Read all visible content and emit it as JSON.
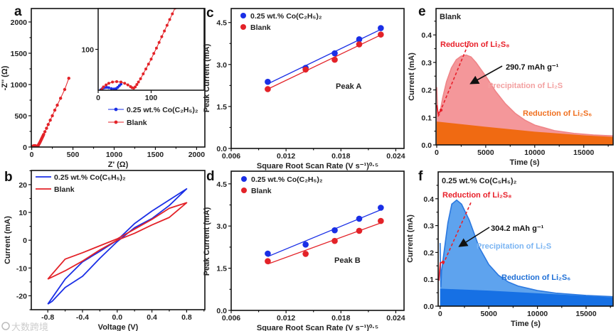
{
  "watermark": "大数跨境",
  "chart_data": [
    {
      "panel": "a",
      "type": "scatter",
      "xlabel": "Z' (Ω)",
      "ylabel": "-Z'' (Ω)",
      "xlim": [
        -5,
        2100
      ],
      "ylim": [
        0,
        2215
      ],
      "xticks": [
        0,
        500,
        1000,
        1500,
        2000
      ],
      "xtick_labels": [
        "0",
        "500",
        "1000",
        "1500",
        "2000"
      ],
      "yticks": [
        0,
        500,
        1000,
        1500,
        2000
      ],
      "ytick_labels": [
        "0",
        "500",
        "1000",
        "1500",
        "2000"
      ],
      "series": [
        {
          "name": "0.25 wt.% Co(C₂H₅)₂",
          "color": "#1a2fe6",
          "points": [
            [
              5,
              1
            ],
            [
              8,
              4
            ],
            [
              12,
              6
            ],
            [
              16,
              7
            ],
            [
              20,
              6
            ],
            [
              25,
              4
            ],
            [
              30,
              3
            ],
            [
              34,
              4
            ],
            [
              37,
              7
            ],
            [
              40,
              11
            ],
            [
              43,
              15
            ]
          ]
        },
        {
          "name": "Blank",
          "color": "#e32228",
          "points": [
            [
              7,
              2
            ],
            [
              10,
              8
            ],
            [
              15,
              13
            ],
            [
              20,
              17
            ],
            [
              27,
              20
            ],
            [
              35,
              21
            ],
            [
              43,
              20
            ],
            [
              50,
              17
            ],
            [
              56,
              13
            ],
            [
              61,
              9
            ],
            [
              64,
              6
            ],
            [
              67,
              5
            ],
            [
              70,
              8
            ],
            [
              73,
              14
            ],
            [
              76,
              20
            ],
            [
              80,
              28
            ],
            [
              85,
              40
            ],
            [
              90,
              52
            ],
            [
              95,
              64
            ],
            [
              100,
              76
            ],
            [
              105,
              90
            ],
            [
              110,
              103
            ],
            [
              115,
              117
            ],
            [
              120,
              131
            ],
            [
              125,
              145
            ],
            [
              130,
              159
            ],
            [
              135,
              173
            ],
            [
              140,
              187
            ],
            [
              145,
              201
            ],
            [
              160,
              245
            ],
            [
              180,
              300
            ],
            [
              200,
              360
            ],
            [
              225,
              430
            ],
            [
              250,
              500
            ],
            [
              280,
              590
            ],
            [
              310,
              670
            ],
            [
              350,
              780
            ],
            [
              400,
              920
            ],
            [
              450,
              1100
            ]
          ]
        }
      ],
      "inset": {
        "xlim": [
          0,
          200
        ],
        "ylim": [
          0,
          200
        ],
        "xticks": [
          0,
          100
        ],
        "xtick_labels": [
          "0",
          "100"
        ],
        "yticks": [
          100
        ],
        "ytick_labels": [
          "100"
        ]
      }
    },
    {
      "panel": "b",
      "type": "line",
      "xlabel": "Voltage (V)",
      "ylabel": "Current (mA)",
      "xlim": [
        -0.99,
        1.01
      ],
      "ylim": [
        -25,
        25.1
      ],
      "xticks": [
        -0.8,
        -0.4,
        0,
        0.4,
        0.8
      ],
      "xtick_labels": [
        "-0.8",
        "-0.4",
        "0.0",
        "0.4",
        "0.8"
      ],
      "yticks": [
        -20,
        -10,
        0,
        10,
        20
      ],
      "ytick_labels": [
        "-20",
        "-10",
        "0",
        "10",
        "20"
      ],
      "series": [
        {
          "name": "0.25 wt.% Co(C₅H₅)₂",
          "color": "#1a2fe6",
          "points": [
            [
              -0.8,
              -23
            ],
            [
              -0.75,
              -22
            ],
            [
              -0.6,
              -17
            ],
            [
              -0.4,
              -13
            ],
            [
              -0.2,
              -6.5
            ],
            [
              0,
              -0.5
            ],
            [
              0.2,
              4.5
            ],
            [
              0.4,
              7.8
            ],
            [
              0.6,
              12.5
            ],
            [
              0.8,
              18.5
            ],
            [
              0.6,
              14.5
            ],
            [
              0.4,
              10.5
            ],
            [
              0.2,
              6
            ],
            [
              0,
              0
            ],
            [
              -0.2,
              -4
            ],
            [
              -0.4,
              -7.8
            ],
            [
              -0.6,
              -14
            ],
            [
              -0.8,
              -23
            ]
          ]
        },
        {
          "name": "Blank",
          "color": "#e32228",
          "points": [
            [
              -0.8,
              -14
            ],
            [
              -0.6,
              -11
            ],
            [
              -0.4,
              -7.5
            ],
            [
              -0.2,
              -3.5
            ],
            [
              0,
              0
            ],
            [
              0.2,
              2.5
            ],
            [
              0.4,
              5.5
            ],
            [
              0.6,
              8.2
            ],
            [
              0.8,
              13.5
            ],
            [
              0.6,
              11.5
            ],
            [
              0.4,
              7.5
            ],
            [
              0.2,
              4
            ],
            [
              0,
              0.5
            ],
            [
              -0.2,
              -2
            ],
            [
              -0.4,
              -4.5
            ],
            [
              -0.6,
              -6.8
            ],
            [
              -0.8,
              -14
            ]
          ]
        }
      ]
    },
    {
      "panel": "c",
      "type": "scatter",
      "xlabel": "Square Root Scan Rate (V s⁻¹)⁰·⁵",
      "ylabel": "Peak Current (mA)",
      "xlim": [
        0.006,
        0.0249
      ],
      "ylim": [
        0,
        5.0
      ],
      "xticks": [
        0.006,
        0.012,
        0.018,
        0.024
      ],
      "xtick_labels": [
        "0.006",
        "0.012",
        "0.018",
        "0.024"
      ],
      "yticks": [
        0,
        1.5,
        3,
        4.5
      ],
      "ytick_labels": [
        "0.0",
        "1.5",
        "3.0",
        "4.5"
      ],
      "annotation": "Peak A",
      "series": [
        {
          "name": "0.25 wt.% Co(C₂H₅)₂",
          "color": "#1a2fe6",
          "points": [
            [
              0.01,
              2.38
            ],
            [
              0.01414,
              2.88
            ],
            [
              0.01732,
              3.4
            ],
            [
              0.02,
              3.9
            ],
            [
              0.02236,
              4.3
            ]
          ]
        },
        {
          "name": "Blank",
          "color": "#e32228",
          "points": [
            [
              0.01,
              2.12
            ],
            [
              0.01414,
              2.82
            ],
            [
              0.01732,
              3.17
            ],
            [
              0.02,
              3.72
            ],
            [
              0.02236,
              4.07
            ]
          ]
        }
      ]
    },
    {
      "panel": "d",
      "type": "scatter",
      "xlabel": "Square Root Scan Rate (V s⁻¹)⁰·⁵",
      "ylabel": "Peak Current (mA)",
      "xlim": [
        0.006,
        0.0249
      ],
      "ylim": [
        0,
        4.95
      ],
      "xticks": [
        0.006,
        0.012,
        0.018,
        0.024
      ],
      "xtick_labels": [
        "0.006",
        "0.012",
        "0.018",
        "0.024"
      ],
      "yticks": [
        0,
        1.5,
        3,
        4.5
      ],
      "ytick_labels": [
        "0.0",
        "1.5",
        "3.0",
        "4.5"
      ],
      "annotation": "Peak B",
      "series": [
        {
          "name": "0.25 wt.% Co(C₂H₅)₂",
          "color": "#1a2fe6",
          "points": [
            [
              0.01,
              2.02
            ],
            [
              0.01414,
              2.34
            ],
            [
              0.01732,
              2.85
            ],
            [
              0.02,
              3.26
            ],
            [
              0.02236,
              3.65
            ]
          ]
        },
        {
          "name": "Blank",
          "color": "#e32228",
          "points": [
            [
              0.01,
              1.75
            ],
            [
              0.01414,
              2.01
            ],
            [
              0.01732,
              2.47
            ],
            [
              0.02,
              2.83
            ],
            [
              0.02236,
              3.18
            ]
          ]
        }
      ]
    },
    {
      "panel": "e",
      "type": "area",
      "title": "Blank",
      "xlabel": "Time (s)",
      "ylabel": "Current (mA)",
      "xlim": [
        -70,
        18000
      ],
      "ylim": [
        0,
        0.496
      ],
      "xticks": [
        0,
        5000,
        10000,
        15000
      ],
      "xtick_labels": [
        "0",
        "5000",
        "10000",
        "15000"
      ],
      "yticks": [
        0,
        0.1,
        0.2,
        0.3,
        0.4
      ],
      "ytick_labels": [
        "0.0",
        "0.1",
        "0.2",
        "0.3",
        "0.4"
      ],
      "total": {
        "color": "#f4979a",
        "line": "#ef8588",
        "points": [
          [
            0,
            0.21
          ],
          [
            100,
            0.12
          ],
          [
            300,
            0.11
          ],
          [
            600,
            0.17
          ],
          [
            1000,
            0.23
          ],
          [
            1500,
            0.28
          ],
          [
            2000,
            0.31
          ],
          [
            2500,
            0.323
          ],
          [
            3000,
            0.327
          ],
          [
            3500,
            0.32
          ],
          [
            4000,
            0.3
          ],
          [
            5000,
            0.25
          ],
          [
            6000,
            0.195
          ],
          [
            7000,
            0.15
          ],
          [
            8000,
            0.115
          ],
          [
            9000,
            0.09
          ],
          [
            10000,
            0.072
          ],
          [
            12000,
            0.052
          ],
          [
            14000,
            0.042
          ],
          [
            16000,
            0.036
          ],
          [
            19000,
            0.031
          ]
        ]
      },
      "baseline": {
        "color": "#f06a12",
        "points": [
          [
            0,
            0.085
          ],
          [
            5000,
            0.066
          ],
          [
            10000,
            0.048
          ],
          [
            15000,
            0.035
          ],
          [
            19000,
            0.027
          ]
        ]
      },
      "annotations": [
        {
          "text": "Reduction of Li₂S₈",
          "color": "#e8202a"
        },
        {
          "text": "290.7 mAh g⁻¹",
          "color": "#111111"
        },
        {
          "text": "Precipitation of Li₂S",
          "color": "#f3a0a0"
        },
        {
          "text": "Reduction of Li₂S₆",
          "color": "#f07020"
        }
      ]
    },
    {
      "panel": "f",
      "type": "area",
      "title": "0.25 wt.% Co(C₅H₅)₂",
      "xlabel": "Time (s)",
      "ylabel": "Current (mA)",
      "xlim": [
        -200,
        17780
      ],
      "ylim": [
        0,
        0.5
      ],
      "xticks": [
        0,
        5000,
        10000,
        15000
      ],
      "xtick_labels": [
        "0",
        "5000",
        "10000",
        "15000"
      ],
      "yticks": [
        0,
        0.1,
        0.2,
        0.3,
        0.4
      ],
      "ytick_labels": [
        "0.0",
        "0.1",
        "0.2",
        "0.3",
        "0.4"
      ],
      "total": {
        "color": "#5ea3ee",
        "line": "#2a78e0",
        "points": [
          [
            0,
            0.235
          ],
          [
            80,
            0.07
          ],
          [
            150,
            0.13
          ],
          [
            400,
            0.2
          ],
          [
            800,
            0.31
          ],
          [
            1200,
            0.38
          ],
          [
            1700,
            0.395
          ],
          [
            2200,
            0.38
          ],
          [
            3000,
            0.32
          ],
          [
            4000,
            0.22
          ],
          [
            5000,
            0.155
          ],
          [
            6000,
            0.115
          ],
          [
            7000,
            0.09
          ],
          [
            8000,
            0.075
          ],
          [
            10000,
            0.058
          ],
          [
            12000,
            0.048
          ],
          [
            15000,
            0.04
          ],
          [
            19000,
            0.033
          ]
        ]
      },
      "baseline": {
        "color": "#1670e4",
        "points": [
          [
            0,
            0.065
          ],
          [
            5000,
            0.058
          ],
          [
            10000,
            0.048
          ],
          [
            15000,
            0.038
          ],
          [
            19000,
            0.03
          ]
        ]
      },
      "annotations": [
        {
          "text": "Reduction of Li₂S₈",
          "color": "#e8202a"
        },
        {
          "text": "304.2 mAh g⁻¹",
          "color": "#111111"
        },
        {
          "text": "Precipitation of Li₂S",
          "color": "#7ab4f2"
        },
        {
          "text": "Reduction of Li₂S₆",
          "color": "#1f6fd6"
        }
      ]
    }
  ]
}
